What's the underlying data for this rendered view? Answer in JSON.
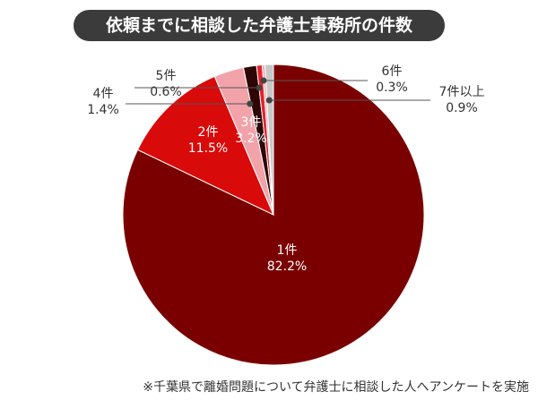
{
  "chart_data": {
    "type": "pie",
    "title": "依頼までに相談した弁護士事務所の件数",
    "categories": [
      "1件",
      "2件",
      "3件",
      "4件",
      "5件",
      "6件",
      "7件以上"
    ],
    "values": [
      82.2,
      11.5,
      3.2,
      1.4,
      0.6,
      0.3,
      0.9
    ],
    "value_labels": [
      "82.2%",
      "11.5%",
      "3.2%",
      "1.4%",
      "0.6%",
      "0.3%",
      "0.9%"
    ],
    "colors": [
      "#7a0000",
      "#d90a0a",
      "#f2a3aa",
      "#2e0606",
      "#e3232d",
      "#f3b0b0",
      "#c8c8c8"
    ],
    "note": "※千葉県で離婚問題について弁護士に相談した人へアンケートを実施"
  }
}
